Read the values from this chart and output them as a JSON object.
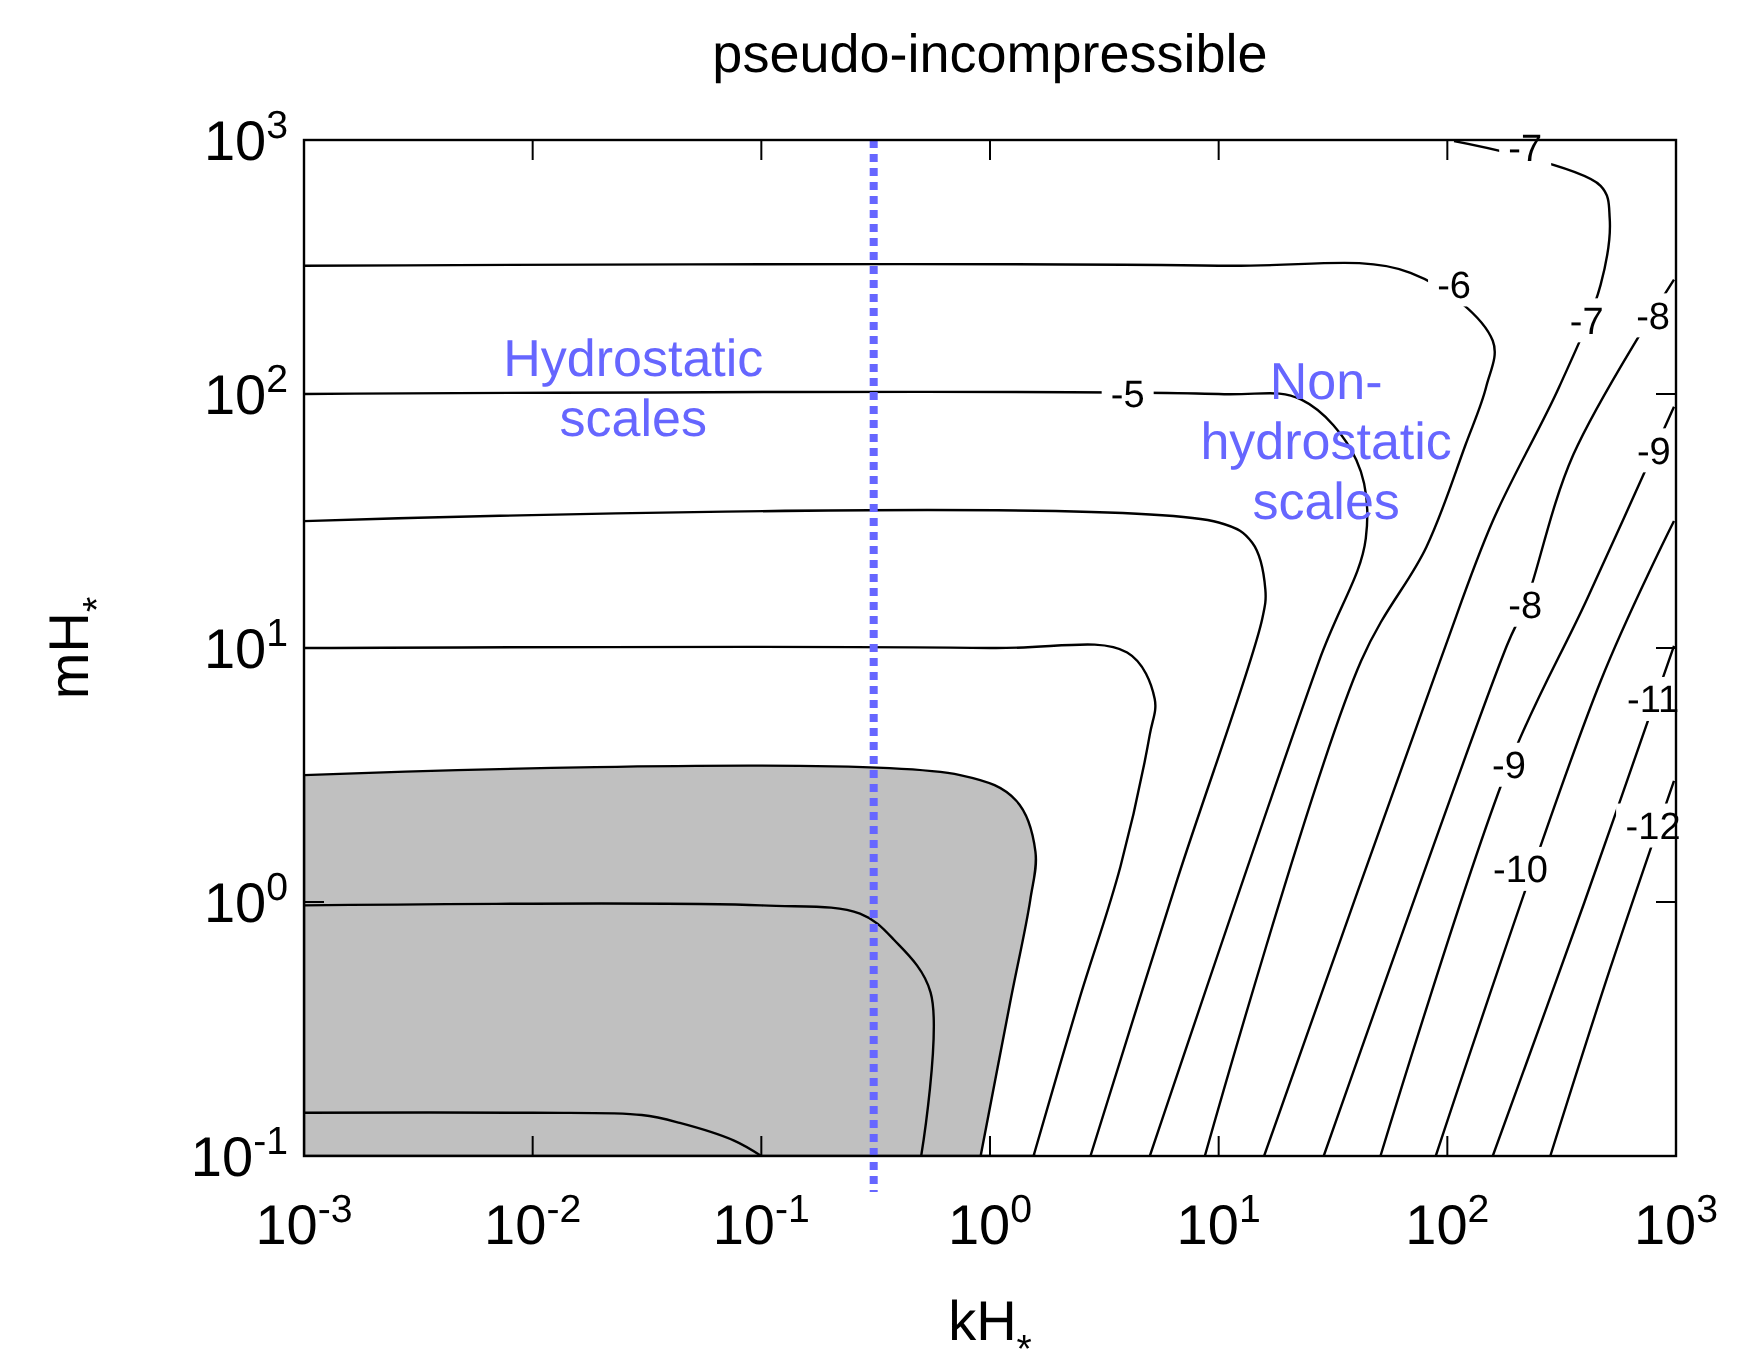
{
  "chart_data": {
    "type": "line",
    "title": "pseudo-incompressible",
    "xlabel": "kH$_{*}$",
    "ylabel": "mH$_{*}$",
    "log": "xy",
    "grid": false,
    "marker": "none",
    "xlim": [
      0.001,
      1000
    ],
    "ylim": [
      0.1,
      1000
    ],
    "xticks": [
      {
        "value": 0.001,
        "label": "10$^{-3}$"
      },
      {
        "value": 0.01,
        "label": "10$^{-2}$"
      },
      {
        "value": 0.1,
        "label": "10$^{-1}$"
      },
      {
        "value": 1,
        "label": "10$^{0}$"
      },
      {
        "value": 10,
        "label": "10$^{1}$"
      },
      {
        "value": 100,
        "label": "10$^{2}$"
      },
      {
        "value": 1000,
        "label": "10$^{3}$"
      }
    ],
    "yticks": [
      {
        "value": 0.1,
        "label": "10$^{-1}$"
      },
      {
        "value": 1,
        "label": "10$^{0}$"
      },
      {
        "value": 10,
        "label": "10$^{1}$"
      },
      {
        "value": 100,
        "label": "10$^{2}$"
      },
      {
        "value": 1000,
        "label": "10$^{3}$"
      }
    ],
    "series": [
      {
        "type": "area",
        "color": "#c0c0c0",
        "x": [
          0.001,
          0.74,
          1.3,
          1.58,
          1.5,
          1.23,
          0.91
        ],
        "values": [
          3.16,
          3.16,
          2.51,
          1.58,
          1.02,
          0.41,
          0.1
        ]
      },
      {
        "color": "#000000",
        "x": [
          0.001,
          0.01,
          0.03,
          0.044,
          0.076,
          0.1
        ],
        "values": [
          0.148,
          0.148,
          0.145,
          0.135,
          0.115,
          0.1
        ]
      },
      {
        "color": "#000000",
        "x": [
          0.001,
          0.1,
          0.27,
          0.38,
          0.55,
          0.5
        ],
        "values": [
          0.97,
          0.97,
          0.9,
          0.71,
          0.44,
          0.1
        ]
      },
      {
        "color": "#000000",
        "x": [
          0.001,
          1,
          3.98,
          5.25,
          5.0,
          3.72,
          2.45,
          1.55
        ],
        "values": [
          10,
          10,
          9.6,
          6.31,
          4.57,
          1.38,
          0.41,
          0.1
        ]
      },
      {
        "color": "#000000",
        "x": [
          0.001,
          10,
          14,
          16,
          15.5,
          6.6,
          2.75
        ],
        "values": [
          31.6,
          31.2,
          26,
          17,
          13,
          1.23,
          0.1
        ]
      },
      {
        "color": "#000000",
        "x": [
          0.001,
          10,
          23,
          40,
          44,
          27.5,
          5.0
        ],
        "values": [
          100,
          100,
          95,
          55,
          27,
          8.9,
          0.1
        ]
      },
      {
        "color": "#000000",
        "x": [
          0.001,
          10,
          69,
          158,
          148,
          120,
          81,
          42,
          8.7
        ],
        "values": [
          320,
          320,
          300,
          162,
          107,
          63,
          25,
          8.9,
          0.1
        ]
      },
      {
        "color": "#000000",
        "x": [
          107,
          468,
          513,
          468,
          309,
          158,
          93,
          15.8
        ],
        "values": [
          990,
          660,
          490,
          269,
          107,
          31.6,
          8.9,
          0.1
        ]
      },
      {
        "color": "#000000",
        "x": [
          980,
          355,
          219,
          182,
          28.8
        ],
        "values": [
          282,
          57.5,
          14.8,
          10.2,
          0.1
        ]
      },
      {
        "color": "#000000",
        "x": [
          980,
          407,
          186,
          51
        ],
        "values": [
          89,
          15.5,
          3.47,
          0.1
        ]
      },
      {
        "color": "#000000",
        "x": [
          980,
          468,
          89
        ],
        "values": [
          31.6,
          7.4,
          0.1
        ]
      },
      {
        "color": "#000000",
        "x": [
          980,
          398,
          158
        ],
        "values": [
          10.2,
          1,
          0.1
        ]
      },
      {
        "color": "#000000",
        "x": [
          980,
          513,
          282
        ],
        "values": [
          3.0,
          0.54,
          0.1
        ]
      }
    ],
    "ref_lines": [
      {
        "axis": "x",
        "value": 0.31,
        "color": "#6666ff",
        "line_style": "dotted"
      }
    ],
    "annotations": [
      "Hydrostatic scales",
      "Non-hydrostatic scales",
      {
        "text": "-5",
        "x": 4,
        "y": 100
      },
      {
        "text": "-6",
        "x": 107,
        "y": 270
      },
      {
        "text": "-7",
        "x": 219,
        "y": 930
      },
      {
        "text": "-7",
        "x": 407,
        "y": 195
      },
      {
        "text": "-8",
        "x": 794,
        "y": 204
      },
      {
        "text": "-9",
        "x": 800,
        "y": 60
      },
      {
        "text": "-8",
        "x": 219,
        "y": 14.8
      },
      {
        "text": "-9",
        "x": 186,
        "y": 3.47
      },
      {
        "text": "-10",
        "x": 209,
        "y": 1.35
      },
      {
        "text": "-11",
        "x": 794,
        "y": 6.3
      },
      {
        "text": "-12",
        "x": 794,
        "y": 2.0
      }
    ]
  }
}
